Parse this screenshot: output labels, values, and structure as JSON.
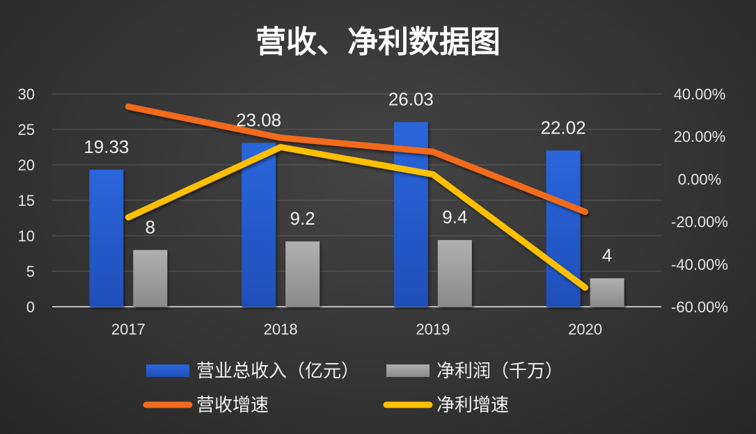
{
  "chart_data": {
    "type": "bar",
    "title": "营收、净利数据图",
    "categories": [
      "2017",
      "2018",
      "2019",
      "2020"
    ],
    "series": [
      {
        "name": "营业总收入（亿元）",
        "type": "bar",
        "axis": "left",
        "color": "#2a62d6",
        "values": [
          19.33,
          23.08,
          26.03,
          22.02
        ],
        "labels": [
          "19.33",
          "23.08",
          "26.03",
          "22.02"
        ]
      },
      {
        "name": "净利润（千万）",
        "type": "bar",
        "axis": "left",
        "color": "#a6a6a6",
        "values": [
          8,
          9.2,
          9.4,
          4
        ],
        "labels": [
          "8",
          "9.2",
          "9.4",
          "4"
        ]
      },
      {
        "name": "营收增速",
        "type": "line",
        "axis": "right",
        "color": "#f26b1d",
        "values": [
          34,
          19.4,
          12.8,
          -15.4
        ]
      },
      {
        "name": "净利增速",
        "type": "line",
        "axis": "right",
        "color": "#ffc000",
        "values": [
          -18,
          15,
          2.2,
          -51
        ]
      }
    ],
    "y_left": {
      "range": [
        0,
        30
      ],
      "ticks": [
        "0",
        "5",
        "10",
        "15",
        "20",
        "25",
        "30"
      ]
    },
    "y_right": {
      "range": [
        -60,
        40
      ],
      "ticks": [
        "-60.00%",
        "-40.00%",
        "-20.00%",
        "0.00%",
        "20.00%",
        "40.00%"
      ]
    },
    "grid": true,
    "legend_placement": "bottom"
  }
}
